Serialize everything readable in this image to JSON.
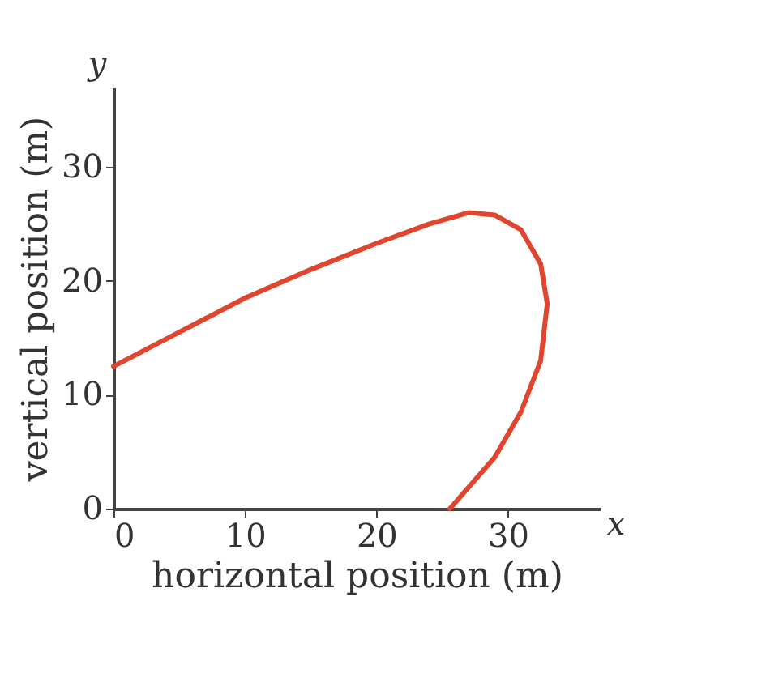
{
  "chart_data": {
    "type": "line",
    "xlabel": "horizontal position (m)",
    "ylabel": "vertical position (m)",
    "annotations": [
      "x",
      "y"
    ],
    "xlim": [
      0,
      37
    ],
    "ylim": [
      0,
      37
    ],
    "xticks": [
      0,
      10,
      20,
      30
    ],
    "yticks": [
      0,
      10,
      20,
      30
    ],
    "grid": false,
    "series": [
      {
        "color": "#e0452f",
        "x": [
          0,
          5,
          10,
          15,
          20,
          24,
          27,
          29,
          31,
          32.5,
          33,
          32.5,
          31,
          29,
          25.6
        ],
        "values": [
          12.5,
          15.5,
          18.5,
          21,
          23.3,
          25,
          26,
          25.8,
          24.5,
          21.5,
          18,
          13,
          8.5,
          4.5,
          0
        ]
      }
    ]
  }
}
